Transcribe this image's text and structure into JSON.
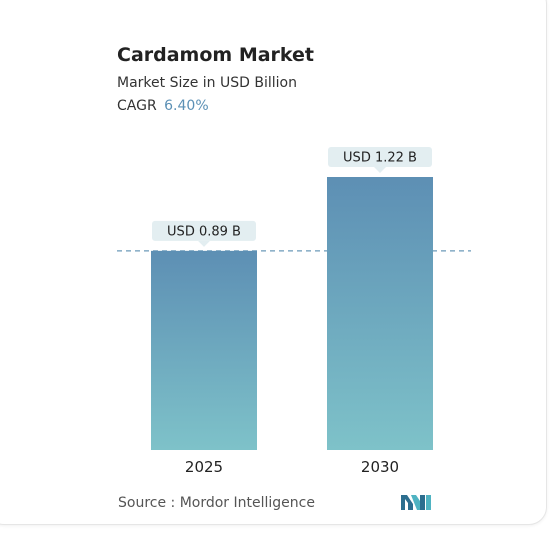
{
  "title": "Cardamom Market",
  "subtitle": "Market Size in USD Billion",
  "cagr_label": "CAGR",
  "cagr_value": "6.40%",
  "source": "Source :  Mordor Intelligence",
  "colors": {
    "bar_top": "#5d8fb4",
    "bar_bottom": "#7ec2c9",
    "label_bg": "#e3eef1",
    "accent": "#5b90b5",
    "dashed_line": "#6b9ab8"
  },
  "icons": {
    "logo": "mordor-intelligence-logo"
  },
  "chart_data": {
    "type": "bar",
    "categories": [
      "2025",
      "2030"
    ],
    "values": [
      0.89,
      1.22
    ],
    "value_labels": [
      "USD 0.89 B",
      "USD 1.22 B"
    ],
    "title": "Cardamom Market",
    "subtitle": "Market Size in USD Billion",
    "xlabel": "",
    "ylabel": "",
    "ylim": [
      0,
      1.22
    ],
    "grid": false,
    "reference_line": 0.89
  }
}
